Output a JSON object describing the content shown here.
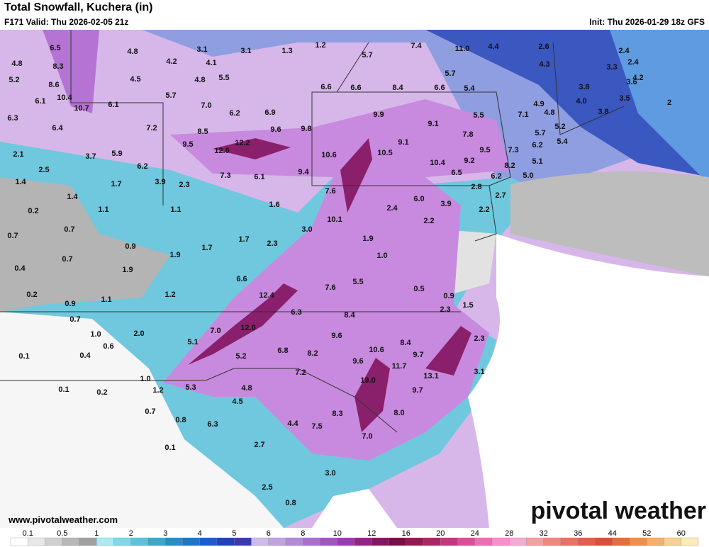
{
  "header": {
    "title": "Total Snowfall, Kuchera (in)",
    "valid": "F171 Valid: Thu 2026-02-05 21z",
    "init": "Init: Thu 2026-01-29 18z GFS"
  },
  "map": {
    "labels": [
      "6.5",
      "4.8",
      "3.1",
      "3.1",
      "1.3",
      "1.2",
      "5.7",
      "7.4",
      "11.0",
      "4.4",
      "2.6",
      "2.4",
      "4.8",
      "8.3",
      "4.2",
      "4.1",
      "4.3",
      "3.3",
      "2.4",
      "5.2",
      "8.6",
      "4.5",
      "4.8",
      "5.5",
      "5.7",
      "4.2",
      "6.6",
      "6.6",
      "8.4",
      "6.6",
      "5.4",
      "3.8",
      "3.6",
      "6.1",
      "10.4",
      "10.7",
      "6.1",
      "5.7",
      "7.0",
      "4.9",
      "4.0",
      "3.5",
      "6.3",
      "6.2",
      "6.9",
      "9.9",
      "5.5",
      "7.1",
      "4.8",
      "3.8",
      "2",
      "6.4",
      "7.2",
      "8.5",
      "9.6",
      "9.8",
      "9.1",
      "7.8",
      "5.2",
      "9.5",
      "12.0",
      "12.2",
      "10.6",
      "10.5",
      "9.1",
      "9.5",
      "7.3",
      "5.7",
      "5.4",
      "6.2",
      "2.1",
      "3.7",
      "5.9",
      "10.4",
      "9.2",
      "8.2",
      "5.1",
      "2.5",
      "6.2",
      "7.3",
      "6.1",
      "9.4",
      "6.5",
      "6.2",
      "5.0",
      "1.4",
      "1.7",
      "3.9",
      "2.3",
      "7.6",
      "2.8",
      "2.7",
      "1.4",
      "6.0",
      "3.9",
      "1.6",
      "2.4",
      "2.2",
      "0.2",
      "1.1",
      "1.1",
      "10.1",
      "2.2",
      "0.7",
      "3.0",
      "0.7",
      "1.7",
      "2.3",
      "1.9",
      "0.9",
      "1.9",
      "1.7",
      "1.0",
      "0.7",
      "0.4",
      "1.9",
      "6.6",
      "5.5",
      "0.5",
      "0.2",
      "12.4",
      "1.2",
      "7.6",
      "0.9",
      "0.9",
      "1.1",
      "6.3",
      "8.4",
      "2.3",
      "1.5",
      "0.7",
      "2.0",
      "7.0",
      "12.0",
      "9.6",
      "2.3",
      "1.0",
      "5.1",
      "6.8",
      "8.2",
      "10.6",
      "8.4",
      "9.7",
      "0.1",
      "0.4",
      "0.6",
      "5.2",
      "9.6",
      "11.7",
      "13.1",
      "3.1",
      "7.2",
      "1.0",
      "19.0",
      "5.3",
      "4.8",
      "1.2",
      "9.7",
      "0.1",
      "0.2",
      "4.5",
      "0.7",
      "8.3",
      "8.0",
      "0.8",
      "6.3",
      "4.4",
      "7.5",
      "7.0",
      "0.1",
      "2.7",
      "3.0",
      "2.5",
      "0.8"
    ]
  },
  "footer": {
    "website": "www.pivotalweather.com",
    "logo": "pivotal weather"
  },
  "colorbar": {
    "labels": [
      "0.1",
      "0.5",
      "1",
      "2",
      "3",
      "4",
      "5",
      "6",
      "8",
      "10",
      "12",
      "16",
      "20",
      "24",
      "28",
      "32",
      "36",
      "44",
      "52",
      "60"
    ],
    "colors": [
      "#ffffff",
      "#e8e8e8",
      "#d0d0d0",
      "#b8b8b8",
      "#a0a0a0",
      "#a8ecf2",
      "#84d6e8",
      "#62c0dc",
      "#42a6cc",
      "#2e8cc4",
      "#2274c4",
      "#1c5ccc",
      "#1e44b8",
      "#3a3aa8",
      "#cdbbe9",
      "#bea2e2",
      "#b488da",
      "#aa6ecf",
      "#a452c4",
      "#9c3aae",
      "#8f2688",
      "#801866",
      "#741046",
      "#8e1a50",
      "#a82866",
      "#c03880",
      "#d8509c",
      "#e870b8",
      "#f490cc",
      "#f6aad6",
      "#f2a0a0",
      "#ec8a80",
      "#e67462",
      "#e0604a",
      "#da5036",
      "#e2703c",
      "#eb9050",
      "#f3b070",
      "#f9d090",
      "#fdecb8"
    ]
  }
}
